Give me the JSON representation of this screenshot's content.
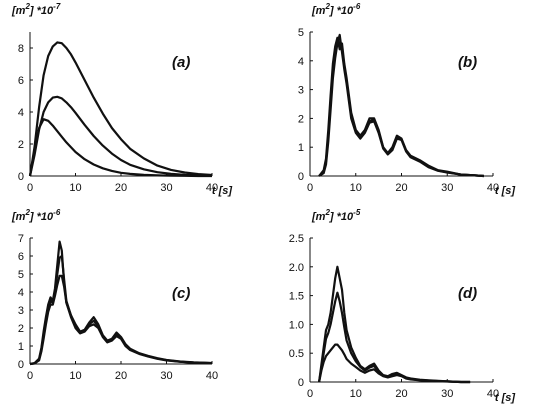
{
  "chart_data": [
    {
      "type": "line",
      "panel_label": "(a)",
      "y_unit": "[m",
      "y_unit_sup": "2",
      "y_unit_scale": "] *10",
      "y_unit_exp": "-7",
      "xlabel": "t [s]",
      "xlim": [
        0,
        40
      ],
      "ylim": [
        0,
        9
      ],
      "xticks": [
        0,
        10,
        20,
        30,
        40
      ],
      "yticks": [
        "0",
        "2",
        "4",
        "6",
        "8"
      ],
      "ytick_values": [
        0,
        2,
        4,
        6,
        8
      ],
      "series": [
        {
          "x": [
            0,
            1,
            2,
            3,
            4,
            5,
            6,
            7,
            8,
            9,
            10,
            12,
            14,
            16,
            18,
            20,
            22,
            25,
            28,
            31,
            34,
            37,
            40
          ],
          "values": [
            0,
            1.8,
            4.3,
            6.3,
            7.5,
            8.1,
            8.35,
            8.3,
            8.0,
            7.6,
            7.1,
            6.0,
            4.9,
            3.9,
            3.0,
            2.3,
            1.7,
            1.1,
            0.65,
            0.38,
            0.22,
            0.12,
            0.06
          ]
        },
        {
          "x": [
            0,
            1,
            2,
            3,
            4,
            5,
            6,
            7,
            8,
            9,
            10,
            12,
            14,
            16,
            18,
            20,
            22,
            25,
            28,
            31,
            34,
            37,
            40
          ],
          "values": [
            0,
            1.3,
            2.9,
            4.0,
            4.6,
            4.9,
            4.95,
            4.85,
            4.6,
            4.3,
            3.95,
            3.2,
            2.5,
            1.9,
            1.4,
            1.0,
            0.7,
            0.42,
            0.24,
            0.13,
            0.07,
            0.04,
            0.02
          ]
        },
        {
          "x": [
            0,
            1,
            2,
            3,
            4,
            5,
            6,
            7,
            8,
            9,
            10,
            12,
            14,
            16,
            18,
            20,
            22,
            25,
            28,
            31,
            34,
            37,
            40
          ],
          "values": [
            0,
            1.6,
            3.0,
            3.55,
            3.45,
            3.15,
            2.8,
            2.45,
            2.1,
            1.8,
            1.5,
            1.05,
            0.72,
            0.48,
            0.32,
            0.2,
            0.13,
            0.07,
            0.04,
            0.02,
            0.01,
            0.0,
            0.0
          ]
        }
      ]
    },
    {
      "type": "line",
      "panel_label": "(b)",
      "y_unit": "[m",
      "y_unit_sup": "2",
      "y_unit_scale": "] *10",
      "y_unit_exp": "-6",
      "xlabel": "t [s]",
      "xlim": [
        0,
        40
      ],
      "ylim": [
        0,
        5
      ],
      "xticks": [
        0,
        10,
        20,
        30,
        40
      ],
      "yticks": [
        "0",
        "1",
        "2",
        "3",
        "4",
        "5"
      ],
      "ytick_values": [
        0,
        1,
        2,
        3,
        4,
        5
      ],
      "series": [
        {
          "x": [
            2,
            3,
            3.5,
            4,
            4.5,
            5,
            5.5,
            6,
            6.5,
            7,
            7.5,
            8,
            8.5,
            9,
            10,
            11,
            12,
            13,
            14,
            15,
            16,
            17,
            18,
            19,
            20,
            21,
            22,
            24,
            26,
            28,
            30,
            33,
            36,
            38
          ],
          "values": [
            0,
            0.2,
            0.6,
            1.6,
            2.8,
            3.9,
            4.5,
            4.8,
            4.4,
            4.6,
            3.9,
            3.4,
            2.8,
            2.2,
            1.6,
            1.4,
            1.6,
            2.0,
            2.0,
            1.6,
            1.0,
            0.8,
            1.0,
            1.4,
            1.3,
            0.9,
            0.7,
            0.55,
            0.35,
            0.2,
            0.15,
            0.05,
            0.02,
            0.0
          ]
        },
        {
          "x": [
            2,
            3,
            3.5,
            4,
            4.5,
            5,
            5.5,
            6,
            6.5,
            7,
            7.5,
            8,
            8.5,
            9,
            10,
            11,
            12,
            13,
            14,
            15,
            16,
            17,
            18,
            19,
            20,
            21,
            22,
            24,
            26,
            28,
            30,
            33,
            36,
            38
          ],
          "values": [
            0,
            0.1,
            0.4,
            1.2,
            2.3,
            3.4,
            4.1,
            4.6,
            4.9,
            4.3,
            3.7,
            3.2,
            2.6,
            2.0,
            1.5,
            1.3,
            1.5,
            1.85,
            1.9,
            1.5,
            0.95,
            0.75,
            0.9,
            1.3,
            1.25,
            0.85,
            0.65,
            0.5,
            0.3,
            0.18,
            0.12,
            0.05,
            0.02,
            0.0
          ]
        },
        {
          "x": [
            2,
            3,
            3.5,
            4,
            4.5,
            5,
            5.5,
            6,
            6.5,
            7,
            7.5,
            8,
            8.5,
            9,
            10,
            11,
            12,
            13,
            14,
            15,
            16,
            17,
            18,
            19,
            20,
            21,
            22,
            24,
            26,
            28,
            30,
            33,
            36,
            38
          ],
          "values": [
            0,
            0.15,
            0.5,
            1.4,
            2.5,
            3.6,
            4.3,
            4.7,
            4.6,
            4.45,
            3.8,
            3.3,
            2.7,
            2.1,
            1.55,
            1.35,
            1.55,
            1.9,
            1.95,
            1.55,
            0.98,
            0.78,
            0.95,
            1.35,
            1.28,
            0.88,
            0.68,
            0.52,
            0.32,
            0.19,
            0.13,
            0.05,
            0.02,
            0.0
          ]
        }
      ]
    },
    {
      "type": "line",
      "panel_label": "(c)",
      "y_unit": "[m",
      "y_unit_sup": "2",
      "y_unit_scale": "] *10",
      "y_unit_exp": "-6",
      "xlabel": "",
      "xlim": [
        0,
        40
      ],
      "ylim": [
        0,
        7
      ],
      "xticks": [
        0,
        10,
        20,
        30,
        40
      ],
      "yticks": [
        "0",
        "1",
        "2",
        "3",
        "4",
        "5",
        "6",
        "7"
      ],
      "ytick_values": [
        0,
        1,
        2,
        3,
        4,
        5,
        6,
        7
      ],
      "series": [
        {
          "x": [
            0,
            1,
            2,
            2.5,
            3,
            3.5,
            4,
            4.5,
            5,
            5.5,
            6,
            6.5,
            7,
            7.5,
            8,
            9,
            10,
            11,
            12,
            13,
            14,
            15,
            16,
            17,
            18,
            19,
            20,
            21,
            22,
            24,
            26,
            28,
            30,
            33,
            36,
            40
          ],
          "values": [
            0,
            0.05,
            0.3,
            0.9,
            1.8,
            2.6,
            3.3,
            3.7,
            3.5,
            4.2,
            5.5,
            6.8,
            6.3,
            4.5,
            3.4,
            2.7,
            2.2,
            1.8,
            1.9,
            2.3,
            2.6,
            2.2,
            1.6,
            1.3,
            1.4,
            1.75,
            1.5,
            1.1,
            0.85,
            0.6,
            0.45,
            0.32,
            0.22,
            0.14,
            0.09,
            0.05
          ]
        },
        {
          "x": [
            0,
            1,
            2,
            2.5,
            3,
            3.5,
            4,
            4.5,
            5,
            5.5,
            6,
            6.5,
            7,
            7.5,
            8,
            9,
            10,
            11,
            12,
            13,
            14,
            15,
            16,
            17,
            18,
            19,
            20,
            21,
            22,
            24,
            26,
            28,
            30,
            33,
            36,
            40
          ],
          "values": [
            0,
            0.04,
            0.25,
            0.8,
            1.6,
            2.4,
            3.1,
            3.5,
            3.4,
            4.0,
            5.0,
            5.9,
            6.0,
            4.7,
            3.5,
            2.7,
            2.1,
            1.75,
            1.85,
            2.2,
            2.4,
            2.1,
            1.55,
            1.25,
            1.35,
            1.65,
            1.45,
            1.05,
            0.8,
            0.58,
            0.43,
            0.3,
            0.21,
            0.13,
            0.08,
            0.05
          ]
        },
        {
          "x": [
            0,
            1,
            2,
            2.5,
            3,
            3.5,
            4,
            4.5,
            5,
            5.5,
            6,
            6.5,
            7,
            7.5,
            8,
            9,
            10,
            11,
            12,
            13,
            14,
            15,
            16,
            17,
            18,
            19,
            20,
            21,
            22,
            24,
            26,
            28,
            30,
            33,
            36,
            40
          ],
          "values": [
            0,
            0.03,
            0.2,
            0.7,
            1.4,
            2.2,
            2.9,
            3.3,
            3.3,
            3.8,
            4.4,
            4.9,
            4.9,
            4.3,
            3.4,
            2.6,
            2.0,
            1.7,
            1.8,
            2.1,
            2.2,
            2.0,
            1.5,
            1.2,
            1.3,
            1.55,
            1.4,
            1.0,
            0.78,
            0.56,
            0.41,
            0.29,
            0.2,
            0.12,
            0.08,
            0.05
          ]
        }
      ]
    },
    {
      "type": "line",
      "panel_label": "(d)",
      "y_unit": "[m",
      "y_unit_sup": "2",
      "y_unit_scale": "] *10",
      "y_unit_exp": "-5",
      "xlabel": "t [s]",
      "xlim": [
        0,
        40
      ],
      "ylim": [
        0,
        2.5
      ],
      "xticks": [
        0,
        10,
        20,
        30,
        40
      ],
      "yticks": [
        "0",
        "0.5",
        "1.0",
        "1.5",
        "2.0",
        "2.5"
      ],
      "ytick_values": [
        0,
        0.5,
        1.0,
        1.5,
        2.0,
        2.5
      ],
      "series": [
        {
          "x": [
            2,
            2.5,
            3,
            3.5,
            4,
            4.5,
            5,
            5.5,
            6,
            6.5,
            7,
            7.5,
            8,
            9,
            10,
            11,
            12,
            13,
            14,
            15,
            16,
            17,
            18,
            19,
            20,
            21,
            22,
            24,
            26,
            28,
            30,
            33,
            35
          ],
          "values": [
            0,
            0.3,
            0.6,
            0.9,
            1.0,
            1.2,
            1.5,
            1.8,
            2.0,
            1.8,
            1.6,
            1.2,
            0.9,
            0.6,
            0.42,
            0.28,
            0.22,
            0.28,
            0.32,
            0.2,
            0.12,
            0.1,
            0.14,
            0.16,
            0.12,
            0.08,
            0.06,
            0.04,
            0.03,
            0.02,
            0.01,
            0.0,
            0.0
          ]
        },
        {
          "x": [
            2,
            2.5,
            3,
            3.5,
            4,
            4.5,
            5,
            5.5,
            6,
            6.5,
            7,
            7.5,
            8,
            9,
            10,
            11,
            12,
            13,
            14,
            15,
            16,
            17,
            18,
            19,
            20,
            21,
            22,
            24,
            26,
            28,
            30,
            33,
            35
          ],
          "values": [
            0,
            0.25,
            0.5,
            0.75,
            0.85,
            1.0,
            1.2,
            1.4,
            1.55,
            1.4,
            1.2,
            0.95,
            0.72,
            0.5,
            0.36,
            0.26,
            0.2,
            0.25,
            0.28,
            0.18,
            0.11,
            0.09,
            0.12,
            0.14,
            0.11,
            0.07,
            0.05,
            0.035,
            0.025,
            0.015,
            0.01,
            0.0,
            0.0
          ]
        },
        {
          "x": [
            2,
            2.5,
            3,
            3.5,
            4,
            4.5,
            5,
            5.5,
            6,
            6.5,
            7,
            7.5,
            8,
            9,
            10,
            11,
            12,
            13,
            14,
            15,
            16,
            17,
            18,
            19,
            20,
            21,
            22,
            24,
            26,
            28,
            30,
            33,
            35
          ],
          "values": [
            0,
            0.2,
            0.35,
            0.45,
            0.5,
            0.55,
            0.6,
            0.65,
            0.65,
            0.6,
            0.55,
            0.48,
            0.4,
            0.32,
            0.26,
            0.2,
            0.16,
            0.2,
            0.22,
            0.15,
            0.1,
            0.08,
            0.1,
            0.12,
            0.1,
            0.06,
            0.045,
            0.03,
            0.02,
            0.012,
            0.008,
            0.0,
            0.0
          ]
        }
      ]
    }
  ]
}
